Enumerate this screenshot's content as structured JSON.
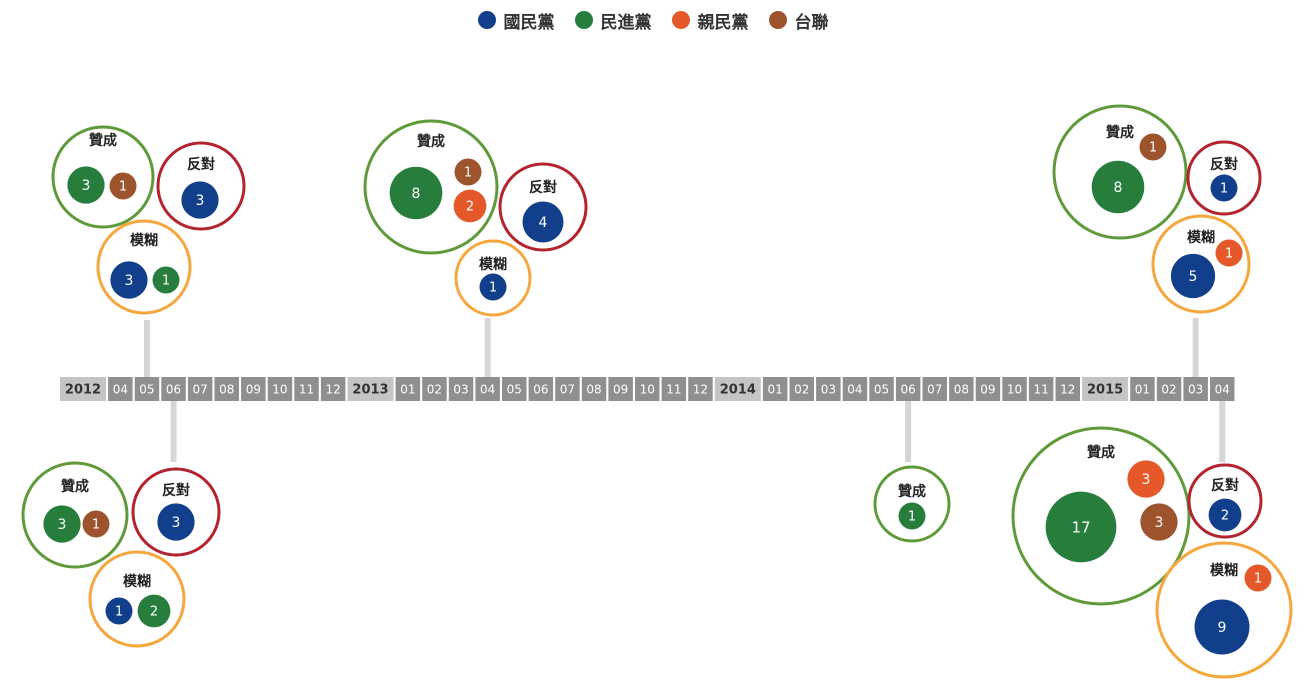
{
  "legend": [
    {
      "name": "國民黨",
      "color": "#123f8c"
    },
    {
      "name": "民進黨",
      "color": "#277e3c"
    },
    {
      "name": "親民黨",
      "color": "#e5582a"
    },
    {
      "name": "台聯",
      "color": "#9d532b"
    }
  ],
  "stance_colors": {
    "贊成": "#5f9a3a",
    "反對": "#b3242f",
    "模糊": "#f5a73e"
  },
  "chart_data": {
    "type": "bubble-timeline",
    "timeline": [
      {
        "label": "2012",
        "kind": "year"
      },
      {
        "label": "04",
        "kind": "month"
      },
      {
        "label": "05",
        "kind": "month"
      },
      {
        "label": "06",
        "kind": "month"
      },
      {
        "label": "07",
        "kind": "month"
      },
      {
        "label": "08",
        "kind": "month"
      },
      {
        "label": "09",
        "kind": "month"
      },
      {
        "label": "10",
        "kind": "month"
      },
      {
        "label": "11",
        "kind": "month"
      },
      {
        "label": "12",
        "kind": "month"
      },
      {
        "label": "2013",
        "kind": "year"
      },
      {
        "label": "01",
        "kind": "month"
      },
      {
        "label": "02",
        "kind": "month"
      },
      {
        "label": "03",
        "kind": "month"
      },
      {
        "label": "04",
        "kind": "month"
      },
      {
        "label": "05",
        "kind": "month"
      },
      {
        "label": "06",
        "kind": "month"
      },
      {
        "label": "07",
        "kind": "month"
      },
      {
        "label": "08",
        "kind": "month"
      },
      {
        "label": "09",
        "kind": "month"
      },
      {
        "label": "10",
        "kind": "month"
      },
      {
        "label": "11",
        "kind": "month"
      },
      {
        "label": "12",
        "kind": "month"
      },
      {
        "label": "2014",
        "kind": "year"
      },
      {
        "label": "01",
        "kind": "month"
      },
      {
        "label": "02",
        "kind": "month"
      },
      {
        "label": "03",
        "kind": "month"
      },
      {
        "label": "04",
        "kind": "month"
      },
      {
        "label": "05",
        "kind": "month"
      },
      {
        "label": "06",
        "kind": "month"
      },
      {
        "label": "07",
        "kind": "month"
      },
      {
        "label": "08",
        "kind": "month"
      },
      {
        "label": "09",
        "kind": "month"
      },
      {
        "label": "10",
        "kind": "month"
      },
      {
        "label": "11",
        "kind": "month"
      },
      {
        "label": "12",
        "kind": "month"
      },
      {
        "label": "2015",
        "kind": "year"
      },
      {
        "label": "01",
        "kind": "month"
      },
      {
        "label": "02",
        "kind": "month"
      },
      {
        "label": "03",
        "kind": "month"
      },
      {
        "label": "04",
        "kind": "month"
      }
    ],
    "events": [
      {
        "date": "2012-05",
        "groups": [
          {
            "stance": "贊成",
            "counts": [
              {
                "party": "民進黨",
                "value": 3
              },
              {
                "party": "台聯",
                "value": 1
              }
            ]
          },
          {
            "stance": "反對",
            "counts": [
              {
                "party": "國民黨",
                "value": 3
              }
            ]
          },
          {
            "stance": "模糊",
            "counts": [
              {
                "party": "國民黨",
                "value": 3
              },
              {
                "party": "民進黨",
                "value": 1
              }
            ]
          }
        ]
      },
      {
        "date": "2012-06",
        "groups": [
          {
            "stance": "贊成",
            "counts": [
              {
                "party": "民進黨",
                "value": 3
              },
              {
                "party": "台聯",
                "value": 1
              }
            ]
          },
          {
            "stance": "反對",
            "counts": [
              {
                "party": "國民黨",
                "value": 3
              }
            ]
          },
          {
            "stance": "模糊",
            "counts": [
              {
                "party": "國民黨",
                "value": 1
              },
              {
                "party": "民進黨",
                "value": 2
              }
            ]
          }
        ]
      },
      {
        "date": "2013-04",
        "groups": [
          {
            "stance": "贊成",
            "counts": [
              {
                "party": "民進黨",
                "value": 8
              },
              {
                "party": "台聯",
                "value": 1
              },
              {
                "party": "親民黨",
                "value": 2
              }
            ]
          },
          {
            "stance": "反對",
            "counts": [
              {
                "party": "國民黨",
                "value": 4
              }
            ]
          },
          {
            "stance": "模糊",
            "counts": [
              {
                "party": "國民黨",
                "value": 1
              }
            ]
          }
        ]
      },
      {
        "date": "2014-06",
        "groups": [
          {
            "stance": "贊成",
            "counts": [
              {
                "party": "民進黨",
                "value": 1
              }
            ]
          }
        ]
      },
      {
        "date": "2015-03",
        "groups": [
          {
            "stance": "贊成",
            "counts": [
              {
                "party": "民進黨",
                "value": 8
              },
              {
                "party": "台聯",
                "value": 1
              }
            ]
          },
          {
            "stance": "反對",
            "counts": [
              {
                "party": "國民黨",
                "value": 1
              }
            ]
          },
          {
            "stance": "模糊",
            "counts": [
              {
                "party": "國民黨",
                "value": 5
              },
              {
                "party": "親民黨",
                "value": 1
              }
            ]
          }
        ]
      },
      {
        "date": "2015-04",
        "groups": [
          {
            "stance": "贊成",
            "counts": [
              {
                "party": "民進黨",
                "value": 17
              },
              {
                "party": "親民黨",
                "value": 3
              },
              {
                "party": "台聯",
                "value": 3
              }
            ]
          },
          {
            "stance": "反對",
            "counts": [
              {
                "party": "國民黨",
                "value": 2
              }
            ]
          },
          {
            "stance": "模糊",
            "counts": [
              {
                "party": "國民黨",
                "value": 9
              },
              {
                "party": "親民黨",
                "value": 1
              }
            ]
          }
        ]
      }
    ]
  }
}
